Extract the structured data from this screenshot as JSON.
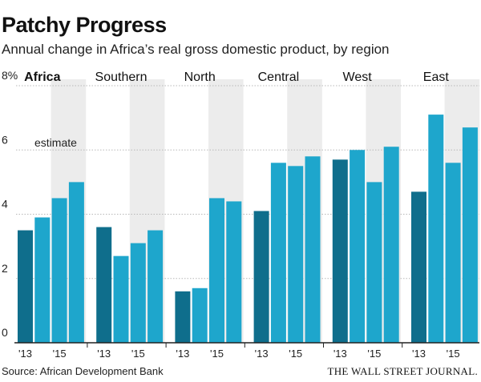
{
  "title": "Patchy Progress",
  "subtitle": "Annual change in Africa’s real gross domestic product, by region",
  "source": "Source: African Development Bank",
  "publisher": "THE WALL STREET JOURNAL.",
  "annotation": "estimate",
  "colors": {
    "dark": "#0f6e8c",
    "light": "#1ea6cc",
    "shade": "#ececec",
    "grid": "#b8b8b8",
    "axis": "#222222"
  },
  "chart_data": {
    "type": "bar",
    "title": "Patchy Progress",
    "subtitle": "Annual change in Africa’s real gross domestic product, by region",
    "y_tick_labels": [
      "0",
      "2",
      "4",
      "6",
      "8%"
    ],
    "ylim": [
      0,
      8
    ],
    "grid": true,
    "x_tick_labels": [
      "'13",
      "'15"
    ],
    "years": [
      2013,
      2014,
      2015,
      2016
    ],
    "estimate_years": [
      2015,
      2016
    ],
    "groups": [
      {
        "name": "Africa",
        "bold": true,
        "values": [
          3.5,
          3.9,
          4.5,
          5.0
        ]
      },
      {
        "name": "Southern",
        "bold": false,
        "values": [
          3.6,
          2.7,
          3.1,
          3.5
        ]
      },
      {
        "name": "North",
        "bold": false,
        "values": [
          1.6,
          1.7,
          4.5,
          4.4
        ]
      },
      {
        "name": "Central",
        "bold": false,
        "values": [
          4.1,
          5.6,
          5.5,
          5.8
        ]
      },
      {
        "name": "West",
        "bold": false,
        "values": [
          5.7,
          6.0,
          5.0,
          6.1
        ]
      },
      {
        "name": "East",
        "bold": false,
        "values": [
          4.7,
          7.1,
          5.6,
          6.7
        ]
      }
    ]
  }
}
